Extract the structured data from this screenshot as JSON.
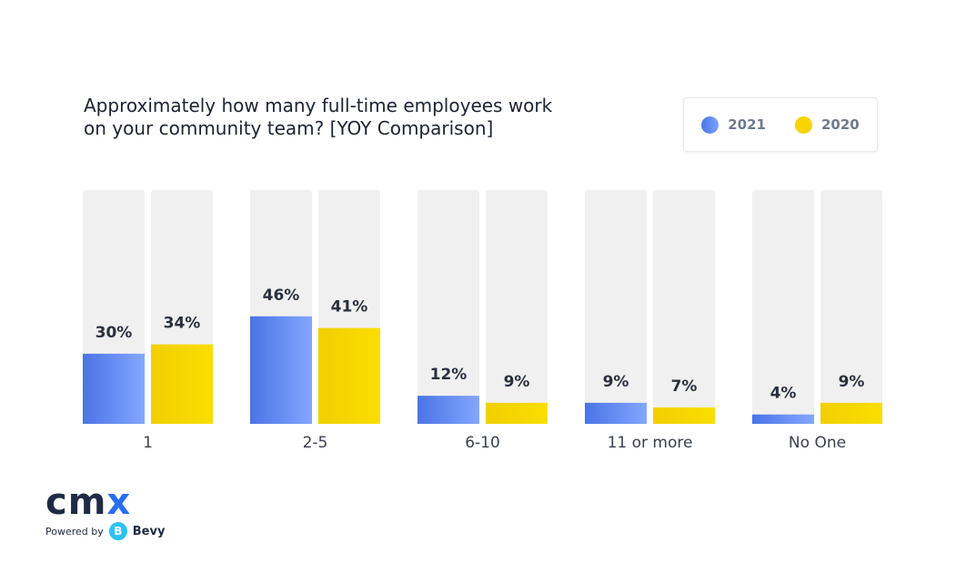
{
  "title_lines": [
    "Approximately how many full-time employees work",
    "on your community team?  [YOY Comparison]"
  ],
  "legend": [
    {
      "label": "2021",
      "color": "#5b86ee"
    },
    {
      "label": "2020",
      "color": "#f7d400"
    }
  ],
  "branding": {
    "logo_text_main": "cm",
    "logo_text_accent": "x",
    "powered_by": "Powered by",
    "bevy_icon_glyph": "B",
    "bevy": "Bevy"
  },
  "chart_data": {
    "type": "bar",
    "title": "Approximately how many full-time employees work on your community team?  [YOY Comparison]",
    "categories": [
      "1",
      "2-5",
      "6-10",
      "11 or more",
      "No One"
    ],
    "series": [
      {
        "name": "2021",
        "values": [
          30,
          46,
          12,
          9,
          4
        ],
        "labels": [
          "30%",
          "46%",
          "12%",
          "9%",
          "4%"
        ],
        "color": "#5b86ee"
      },
      {
        "name": "2020",
        "values": [
          34,
          41,
          9,
          7,
          9
        ],
        "labels": [
          "34%",
          "41%",
          "9%",
          "7%",
          "9%"
        ],
        "color": "#f7d400"
      }
    ],
    "ylim": [
      0,
      100
    ],
    "unit": "%",
    "background_track_color": "#f0f0f0",
    "grid": false,
    "legend_position": "top-right"
  }
}
